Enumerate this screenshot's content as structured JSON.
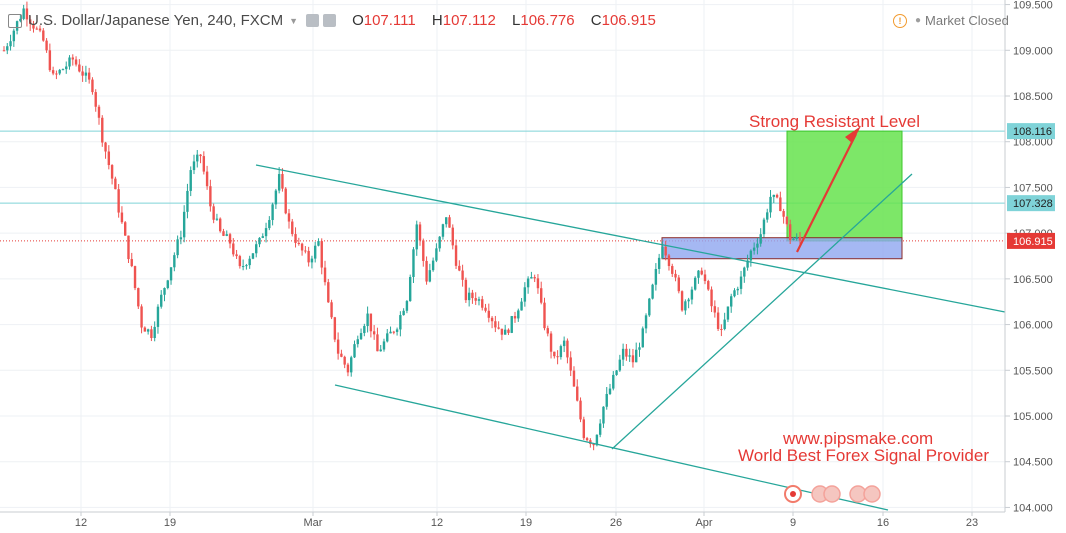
{
  "header": {
    "symbol": "U.S. Dollar/Japanese Yen, 240, FXCM",
    "open_label": "O",
    "open": "107.111",
    "high_label": "H",
    "high": "107.112",
    "low_label": "L",
    "low": "106.776",
    "close_label": "C",
    "close": "106.915",
    "status": "Market Closed"
  },
  "annotations": {
    "resistant": "Strong Resistant Level",
    "website": "www.pipsmake.com",
    "tagline": "World Best Forex Signal Provider"
  },
  "colors": {
    "up": "#26a69a",
    "down": "#ef5350",
    "trendline": "#26a69a",
    "hline": "#7fd3d8",
    "close_line": "#e53935",
    "target_box": "#66e34d",
    "entry_box": "#8fa6f0",
    "arrow": "#e53935"
  },
  "chart_data": {
    "type": "candlestick",
    "title": "U.S. Dollar/Japanese Yen, 240, FXCM",
    "x_tick_labels": [
      "12",
      "19",
      "Mar",
      "12",
      "19",
      "26",
      "Apr",
      "9",
      "16",
      "23"
    ],
    "y_tick_labels": [
      "104.000",
      "104.500",
      "105.000",
      "105.500",
      "106.000",
      "106.500",
      "107.000",
      "107.500",
      "108.000",
      "108.500",
      "109.000",
      "109.500"
    ],
    "ylim": [
      103.95,
      109.55
    ],
    "price_tags": [
      {
        "value": 108.116,
        "label": "108.116",
        "kind": "level"
      },
      {
        "value": 107.328,
        "label": "107.328",
        "kind": "level"
      },
      {
        "value": 106.915,
        "label": "106.915",
        "kind": "close"
      }
    ],
    "ohlc": {
      "open": 107.111,
      "high": 107.112,
      "low": 106.776,
      "close": 106.915
    },
    "price_path": [
      [
        0,
        109.0
      ],
      [
        2,
        109.45
      ],
      [
        4,
        109.1
      ],
      [
        5,
        108.7
      ],
      [
        7,
        108.9
      ],
      [
        9,
        108.6
      ],
      [
        10,
        108.05
      ],
      [
        11,
        107.6
      ],
      [
        12,
        107.1
      ],
      [
        13,
        106.6
      ],
      [
        14,
        106.0
      ],
      [
        15,
        105.9
      ],
      [
        16,
        106.3
      ],
      [
        18,
        107.0
      ],
      [
        19,
        107.7
      ],
      [
        20,
        107.85
      ],
      [
        21,
        107.3
      ],
      [
        22,
        107.0
      ],
      [
        23,
        106.9
      ],
      [
        24,
        106.6
      ],
      [
        26,
        106.9
      ],
      [
        27,
        107.2
      ],
      [
        28,
        107.6
      ],
      [
        29,
        107.1
      ],
      [
        30,
        106.85
      ],
      [
        31,
        106.7
      ],
      [
        32,
        106.9
      ],
      [
        33,
        106.2
      ],
      [
        34,
        105.7
      ],
      [
        35,
        105.5
      ],
      [
        36,
        105.9
      ],
      [
        37,
        106.1
      ],
      [
        38,
        105.7
      ],
      [
        40,
        106.0
      ],
      [
        41,
        106.3
      ],
      [
        42,
        107.1
      ],
      [
        43,
        106.5
      ],
      [
        44,
        106.8
      ],
      [
        45,
        107.2
      ],
      [
        46,
        106.7
      ],
      [
        47,
        106.3
      ],
      [
        48,
        106.3
      ],
      [
        49,
        106.2
      ],
      [
        50,
        106.0
      ],
      [
        51,
        105.9
      ],
      [
        52,
        106.1
      ],
      [
        53,
        106.4
      ],
      [
        54,
        106.55
      ],
      [
        55,
        106.0
      ],
      [
        56,
        105.6
      ],
      [
        57,
        105.8
      ],
      [
        58,
        105.3
      ],
      [
        59,
        104.8
      ],
      [
        60,
        104.7
      ],
      [
        61,
        105.1
      ],
      [
        62,
        105.4
      ],
      [
        63,
        105.7
      ],
      [
        64,
        105.6
      ],
      [
        65,
        105.9
      ],
      [
        66,
        106.4
      ],
      [
        67,
        106.9
      ],
      [
        68,
        106.6
      ],
      [
        69,
        106.2
      ],
      [
        70,
        106.4
      ],
      [
        71,
        106.6
      ],
      [
        72,
        106.2
      ],
      [
        73,
        105.9
      ],
      [
        74,
        106.3
      ],
      [
        75,
        106.5
      ],
      [
        76,
        106.8
      ],
      [
        77,
        107.0
      ],
      [
        78,
        107.4
      ],
      [
        79,
        107.3
      ],
      [
        80,
        106.95
      ],
      [
        81,
        106.915
      ]
    ]
  }
}
